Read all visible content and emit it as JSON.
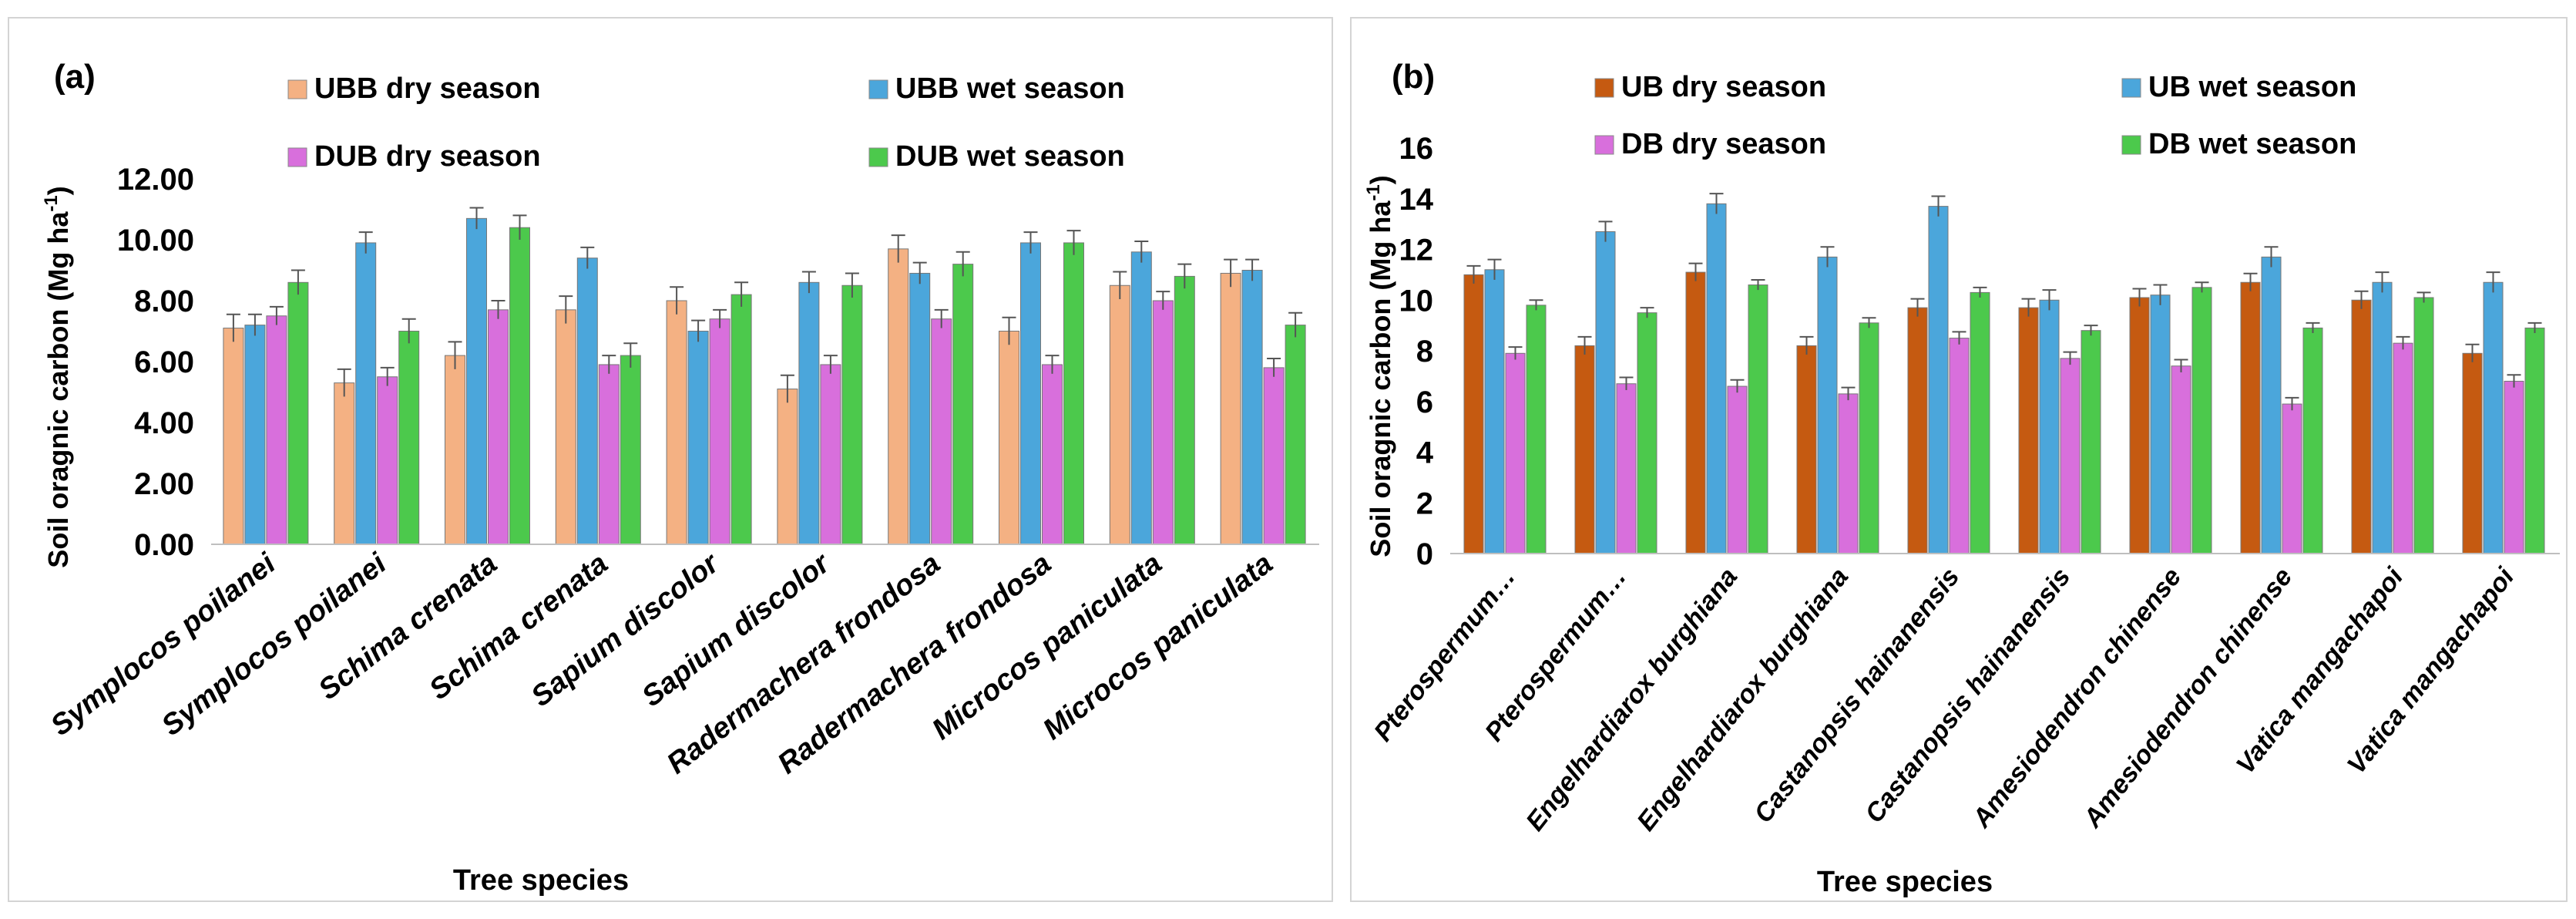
{
  "chart_data": [
    {
      "type": "bar",
      "panel_label": "(a)",
      "xlabel": "Tree species",
      "ylabel": "Soil oragnic carbon (Mg ha",
      "ylabel_sup": "-1",
      "ylabel_close": ")",
      "ylim": [
        0,
        12
      ],
      "yticks": [
        "0.00",
        "2.00",
        "4.00",
        "6.00",
        "8.00",
        "10.00",
        "12.00"
      ],
      "categories": [
        "Symplocos poilanei",
        "Symplocos poilanei",
        "Schima crenata",
        "Schima crenata",
        "Sapium discolor",
        "Sapium discolor",
        "Radermachera frondosa",
        "Radermachera frondosa",
        "Microcos paniculata",
        "Microcos paniculata"
      ],
      "series": [
        {
          "name": "UBB dry season",
          "color": "#F4B183",
          "values": [
            7.1,
            5.3,
            6.2,
            7.7,
            8.0,
            5.1,
            9.7,
            7.0,
            8.5,
            8.9
          ],
          "errors": [
            0.45,
            0.45,
            0.45,
            0.45,
            0.45,
            0.45,
            0.45,
            0.45,
            0.45,
            0.45
          ]
        },
        {
          "name": "UBB wet season",
          "color": "#4BA6DB",
          "values": [
            7.2,
            9.9,
            10.7,
            9.4,
            7.0,
            8.6,
            8.9,
            9.9,
            9.6,
            9.0
          ],
          "errors": [
            0.35,
            0.35,
            0.35,
            0.35,
            0.35,
            0.35,
            0.35,
            0.35,
            0.35,
            0.35
          ]
        },
        {
          "name": "DUB dry season",
          "color": "#D86FDC",
          "values": [
            7.5,
            5.5,
            7.7,
            5.9,
            7.4,
            5.9,
            7.4,
            5.9,
            8.0,
            5.8
          ],
          "errors": [
            0.3,
            0.3,
            0.3,
            0.3,
            0.3,
            0.3,
            0.3,
            0.3,
            0.3,
            0.3
          ]
        },
        {
          "name": "DUB wet season",
          "color": "#4CC94C",
          "values": [
            8.6,
            7.0,
            10.4,
            6.2,
            8.2,
            8.5,
            9.2,
            9.9,
            8.8,
            7.2
          ],
          "errors": [
            0.4,
            0.4,
            0.4,
            0.4,
            0.4,
            0.4,
            0.4,
            0.4,
            0.4,
            0.4
          ]
        }
      ]
    },
    {
      "type": "bar",
      "panel_label": "(b)",
      "xlabel": "Tree species",
      "ylabel": "Soil oragnic carbon (Mg ha",
      "ylabel_sup": "-1",
      "ylabel_close": ")",
      "ylim": [
        0,
        16
      ],
      "yticks": [
        "0",
        "2",
        "4",
        "6",
        "8",
        "10",
        "12",
        "14",
        "16"
      ],
      "categories": [
        "Pterospermum…",
        "Pterospermum…",
        "Engelhardiarox burghiana",
        "Engelhardiarox burghiana",
        "Castanopsis hainanensis",
        "Castanopsis hainanensis",
        "Amesiodendron chinense",
        "Amesiodendron chinense",
        "Vatica mangachapoi",
        "Vatica mangachapoi"
      ],
      "series": [
        {
          "name": "UB dry season",
          "color": "#C55A11",
          "values": [
            11.0,
            8.2,
            11.1,
            8.2,
            9.7,
            9.7,
            10.1,
            10.7,
            10.0,
            7.9
          ],
          "errors": [
            0.35,
            0.35,
            0.35,
            0.35,
            0.35,
            0.35,
            0.35,
            0.35,
            0.35,
            0.35
          ]
        },
        {
          "name": "UB wet season",
          "color": "#4BA6DB",
          "values": [
            11.2,
            12.7,
            13.8,
            11.7,
            13.7,
            10.0,
            10.2,
            11.7,
            10.7,
            10.7
          ],
          "errors": [
            0.4,
            0.4,
            0.4,
            0.4,
            0.4,
            0.4,
            0.4,
            0.4,
            0.4,
            0.4
          ]
        },
        {
          "name": "DB dry season",
          "color": "#D86FDC",
          "values": [
            7.9,
            6.7,
            6.6,
            6.3,
            8.5,
            7.7,
            7.4,
            5.9,
            8.3,
            6.8
          ],
          "errors": [
            0.25,
            0.25,
            0.25,
            0.25,
            0.25,
            0.25,
            0.25,
            0.25,
            0.25,
            0.25
          ]
        },
        {
          "name": "DB wet season",
          "color": "#4CC94C",
          "values": [
            9.8,
            9.5,
            10.6,
            9.1,
            10.3,
            8.8,
            10.5,
            8.9,
            10.1,
            8.9
          ],
          "errors": [
            0.2,
            0.2,
            0.2,
            0.2,
            0.2,
            0.2,
            0.2,
            0.2,
            0.2,
            0.2
          ]
        }
      ]
    }
  ]
}
